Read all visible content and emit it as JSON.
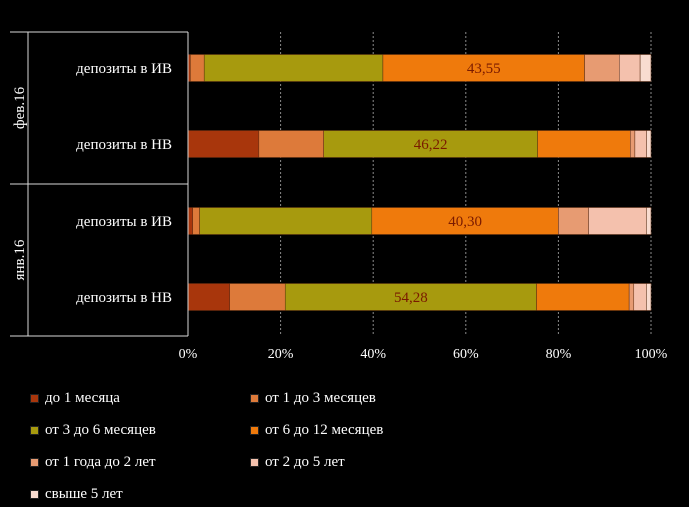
{
  "chart_data": {
    "type": "bar",
    "orientation": "horizontal",
    "stacked": "percent",
    "xlim": [
      0,
      100
    ],
    "x_ticks": [
      "0%",
      "20%",
      "40%",
      "60%",
      "80%",
      "100%"
    ],
    "grid": "vertical dotted",
    "legend_position": "bottom",
    "groups": [
      {
        "label": "фев.16",
        "rows": [
          {
            "label": "депозиты в ИВ",
            "values": [
              0.5,
              3.0,
              38.6,
              43.55,
              7.5,
              4.5,
              2.35
            ],
            "data_label": "43,55"
          },
          {
            "label": "депозиты в НВ",
            "values": [
              15.3,
              14.0,
              46.22,
              20.0,
              1.0,
              2.5,
              0.98
            ],
            "data_label": "46,22"
          }
        ]
      },
      {
        "label": "янв.16",
        "rows": [
          {
            "label": "депозиты в ИВ",
            "values": [
              1.0,
              1.5,
              37.2,
              40.3,
              6.5,
              12.5,
              1.0
            ],
            "data_label": "40,30"
          },
          {
            "label": "депозиты в НВ",
            "values": [
              9.0,
              12.0,
              54.28,
              20.0,
              1.0,
              2.72,
              1.0
            ],
            "data_label": "54,28"
          }
        ]
      }
    ],
    "series": [
      {
        "name": "до 1 месяца",
        "color": "#a8360c"
      },
      {
        "name": "от 1 до 3 месяцев",
        "color": "#dd7a3a"
      },
      {
        "name": "от 3 до 6 месяцев",
        "color": "#a79a0e"
      },
      {
        "name": "от 6 до 12 месяцев",
        "color": "#ef7a0c"
      },
      {
        "name": "от 1 года до 2 лет",
        "color": "#e79b72"
      },
      {
        "name": "от 2 до 5 лет",
        "color": "#f4c1ad"
      },
      {
        "name": "свыше 5 лет",
        "color": "#f8dcd0"
      }
    ]
  }
}
